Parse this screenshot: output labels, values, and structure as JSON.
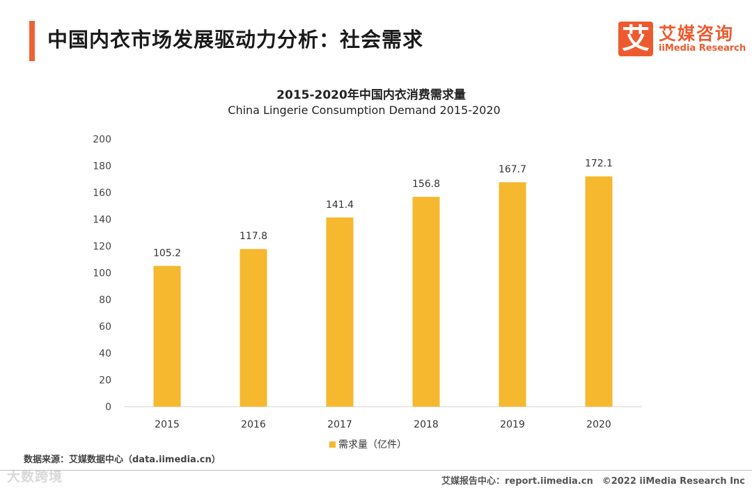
{
  "page": {
    "title": "中国内衣市场发展驱动力分析：社会需求"
  },
  "logo": {
    "mark": "艾",
    "cn": "艾媒咨询",
    "en": "iiMedia Research"
  },
  "colors": {
    "accent": "#ee6336",
    "bar": "#f5b82e"
  },
  "chart_data": {
    "type": "bar",
    "title": "2015-2020年中国内衣消费需求量",
    "subtitle": "China Lingerie Consumption Demand 2015-2020",
    "categories": [
      "2015",
      "2016",
      "2017",
      "2018",
      "2019",
      "2020"
    ],
    "series": [
      {
        "name": "需求量（亿件）",
        "values": [
          105.2,
          117.8,
          141.4,
          156.8,
          167.7,
          172.1
        ]
      }
    ],
    "data_labels": [
      "105.2",
      "117.8",
      "141.4",
      "156.8",
      "167.7",
      "172.1"
    ],
    "ylim": [
      0,
      200
    ],
    "yticks": [
      0,
      20,
      40,
      60,
      80,
      100,
      120,
      140,
      160,
      180,
      200
    ],
    "grid": false,
    "legend": "bottom",
    "xlabel": "",
    "ylabel": ""
  },
  "footer": {
    "source": "数据来源：艾媒数据中心（data.iimedia.cn）",
    "watermark": "大数跨境",
    "credit": "艾媒报告中心：report.iimedia.cn　©2022  iiMedia Research  Inc"
  }
}
